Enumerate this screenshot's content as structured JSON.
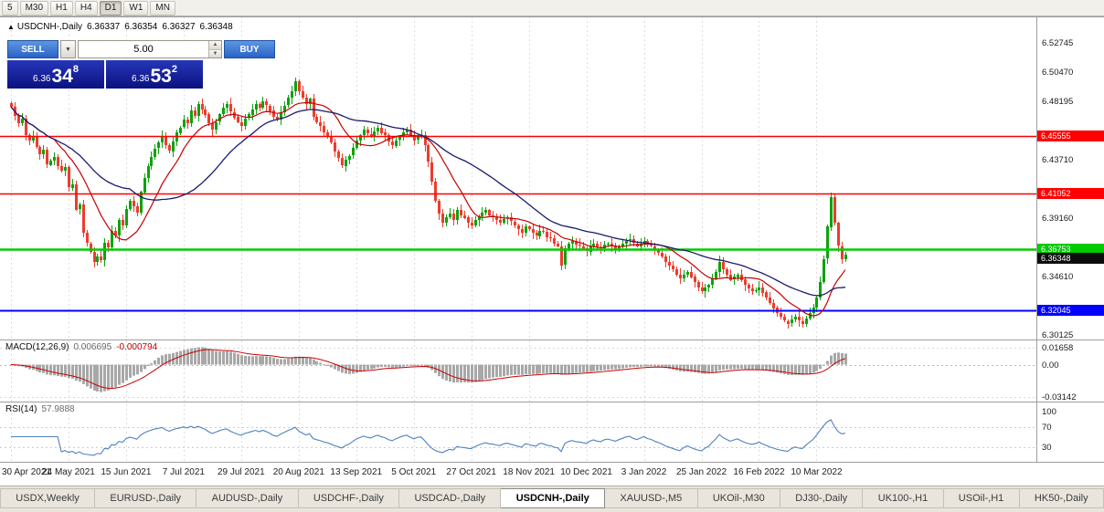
{
  "toolbar": {
    "timeframes": [
      "5",
      "M30",
      "H1",
      "H4",
      "D1",
      "W1",
      "MN"
    ],
    "active_timeframe": "D1"
  },
  "symbol_info": {
    "marker": "▲",
    "title": "USDCNH-,Daily",
    "open": "6.36337",
    "high": "6.36354",
    "low": "6.36327",
    "close": "6.36348"
  },
  "trade_panel": {
    "sell_label": "SELL",
    "buy_label": "BUY",
    "volume": "5.00",
    "bid": {
      "prefix": "6.36",
      "big": "34",
      "sup": "8"
    },
    "ask": {
      "prefix": "6.36",
      "big": "53",
      "sup": "2"
    }
  },
  "chart_data": {
    "type": "candlestick",
    "symbol": "USDCNH",
    "timeframe": "Daily",
    "price_panel": {
      "ylim": [
        6.2975,
        6.548
      ],
      "axis_labels": [
        6.52745,
        6.5047,
        6.48195,
        6.4371,
        6.3916,
        6.3461,
        6.30125
      ],
      "hlines": [
        {
          "price": 6.45555,
          "color": "#ff0000",
          "width": 1.4
        },
        {
          "price": 6.41052,
          "color": "#ff0000",
          "width": 1.4
        },
        {
          "price": 6.36753,
          "color": "#00cc00",
          "width": 2.4
        },
        {
          "price": 6.32045,
          "color": "#0000ff",
          "width": 2
        }
      ],
      "current_price": {
        "value": 6.36348,
        "tag_bg": "#0d0d0d"
      },
      "ma_fast": {
        "period": 13,
        "color": "#c80000"
      },
      "ma_slow": {
        "period": 34,
        "color": "#1b1b6e"
      },
      "up_color": "#0ca30c",
      "down_color": "#ef3b2d",
      "closes": [
        6.478,
        6.471,
        6.465,
        6.4685,
        6.456,
        6.452,
        6.4555,
        6.447,
        6.441,
        6.4445,
        6.433,
        6.4365,
        6.439,
        6.432,
        6.4285,
        6.431,
        6.4155,
        6.418,
        6.3985,
        6.402,
        6.38,
        6.372,
        6.3655,
        6.3575,
        6.362,
        6.359,
        6.3725,
        6.369,
        6.3815,
        6.378,
        6.39,
        6.386,
        6.3985,
        6.405,
        6.401,
        6.396,
        6.412,
        6.423,
        6.432,
        6.439,
        6.4455,
        6.45,
        6.455,
        6.448,
        6.4435,
        6.451,
        6.458,
        6.462,
        6.468,
        6.465,
        6.475,
        6.471,
        6.48,
        6.476,
        6.472,
        6.465,
        6.46,
        6.466,
        6.472,
        6.477,
        6.48,
        6.474,
        6.47,
        6.466,
        6.463,
        6.469,
        6.472,
        6.476,
        6.48,
        6.477,
        6.482,
        6.479,
        6.475,
        6.47,
        6.468,
        6.474,
        6.479,
        6.485,
        6.49,
        6.498,
        6.49,
        6.485,
        6.48,
        6.484,
        6.47,
        6.466,
        6.463,
        6.458,
        6.455,
        6.45,
        6.443,
        6.438,
        6.432,
        6.437,
        6.44,
        6.446,
        6.452,
        6.456,
        6.46,
        6.457,
        6.455,
        6.459,
        6.462,
        6.458,
        6.456,
        6.451,
        6.448,
        6.452,
        6.455,
        6.458,
        6.46,
        6.456,
        6.452,
        6.455,
        6.456,
        6.448,
        6.435,
        6.42,
        6.405,
        6.395,
        6.388,
        6.392,
        6.395,
        6.39,
        6.398,
        6.394,
        6.392,
        6.388,
        6.386,
        6.39,
        6.393,
        6.396,
        6.398,
        6.394,
        6.393,
        6.39,
        6.388,
        6.391,
        6.392,
        6.389,
        6.386,
        6.383,
        6.38,
        6.385,
        6.383,
        6.38,
        6.378,
        6.382,
        6.381,
        6.377,
        6.376,
        6.372,
        6.37,
        6.355,
        6.368,
        6.372,
        6.374,
        6.371,
        6.37,
        6.368,
        6.366,
        6.37,
        6.372,
        6.369,
        6.368,
        6.371,
        6.372,
        6.37,
        6.368,
        6.37,
        6.372,
        6.374,
        6.375,
        6.372,
        6.37,
        6.372,
        6.374,
        6.371,
        6.37,
        6.367,
        6.365,
        6.362,
        6.358,
        6.355,
        6.352,
        6.348,
        6.345,
        6.348,
        6.35,
        6.346,
        6.342,
        6.338,
        6.335,
        6.338,
        6.34,
        6.345,
        6.35,
        6.358,
        6.352,
        6.348,
        6.344,
        6.346,
        6.348,
        6.344,
        6.34,
        6.337,
        6.335,
        6.336,
        6.338,
        6.334,
        6.33,
        6.326,
        6.322,
        6.318,
        6.315,
        6.312,
        6.31,
        6.313,
        6.315,
        6.312,
        6.31,
        6.314,
        6.318,
        6.322,
        6.33,
        6.342,
        6.36,
        6.385,
        6.408,
        6.388,
        6.37,
        6.36,
        6.36348
      ]
    },
    "macd_panel": {
      "label": "MACD(12,26,9)",
      "value_main": "0.006695",
      "value_signal": "-0.000794",
      "params": [
        12,
        26,
        9
      ],
      "ylim": [
        -0.036,
        0.0245
      ],
      "axis_labels": [
        0.01658,
        0,
        -0.03142
      ],
      "axis_texts": [
        "0.01658",
        "0.00",
        "-0.03142"
      ],
      "hist_color": "#a8a8a8",
      "signal_color": "#c80000"
    },
    "rsi_panel": {
      "label": "RSI(14)",
      "value": "57.9888",
      "period": 14,
      "ylim": [
        0,
        120
      ],
      "levels": [
        70,
        30
      ],
      "axis_labels": [
        100,
        70,
        30
      ],
      "line_color": "#4f81bd"
    },
    "x_axis": {
      "tick_step": 16,
      "dates": [
        "30 Apr 2021",
        "24 May 2021",
        "15 Jun 2021",
        "7 Jul 2021",
        "29 Jul 2021",
        "20 Aug 2021",
        "13 Sep 2021",
        "5 Oct 2021",
        "27 Oct 2021",
        "18 Nov 2021",
        "10 Dec 2021",
        "3 Jan 2022",
        "25 Jan 2022",
        "16 Feb 2022",
        "10 Mar 2022"
      ]
    }
  },
  "tabs": [
    {
      "label": "USDX,Weekly",
      "active": false
    },
    {
      "label": "EURUSD-,Daily",
      "active": false
    },
    {
      "label": "AUDUSD-,Daily",
      "active": false
    },
    {
      "label": "USDCHF-,Daily",
      "active": false
    },
    {
      "label": "USDCAD-,Daily",
      "active": false
    },
    {
      "label": "USDCNH-,Daily",
      "active": true
    },
    {
      "label": "XAUUSD-,M5",
      "active": false
    },
    {
      "label": "UKOil-,M30",
      "active": false
    },
    {
      "label": "DJ30-,Daily",
      "active": false
    },
    {
      "label": "UK100-,H1",
      "active": false
    },
    {
      "label": "USOil-,H1",
      "active": false
    },
    {
      "label": "HK50-,Daily",
      "active": false
    }
  ]
}
